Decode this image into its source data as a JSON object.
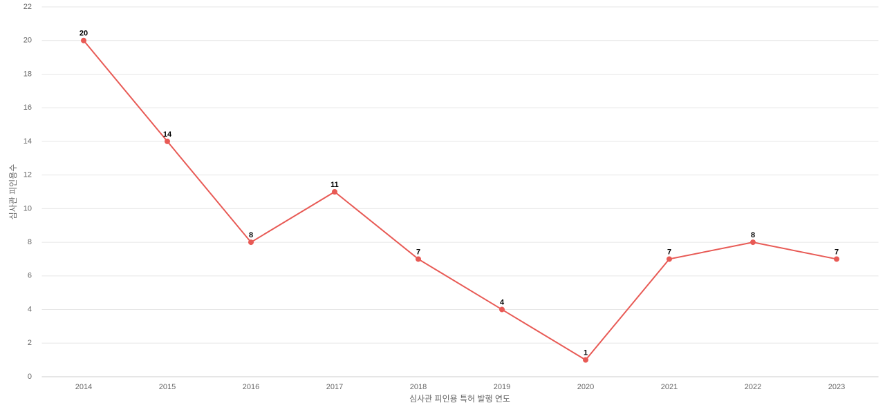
{
  "chart_data": {
    "type": "line",
    "x_label": "심사관 피인용 특허 발행 연도",
    "y_label": "심사관 피인용수",
    "categories": [
      "2014",
      "2015",
      "2016",
      "2017",
      "2018",
      "2019",
      "2020",
      "2021",
      "2022",
      "2023"
    ],
    "values": [
      20,
      14,
      8,
      11,
      7,
      4,
      1,
      7,
      8,
      7
    ],
    "color": "#e85a55",
    "ylim": [
      0,
      22
    ],
    "yticks": [
      0,
      2,
      4,
      6,
      8,
      10,
      12,
      14,
      16,
      18,
      20,
      22
    ],
    "grid": true
  }
}
